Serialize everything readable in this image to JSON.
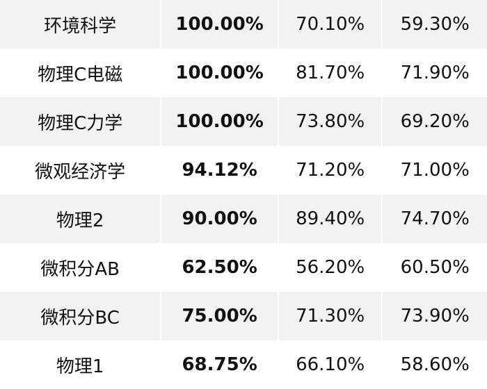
{
  "rows": [
    {
      "subject": "环境科学",
      "rate": "100.00%",
      "col3": "70.10%",
      "col4": "59.30%"
    },
    {
      "subject": "物理C电磁",
      "rate": "100.00%",
      "col3": "81.70%",
      "col4": "71.90%"
    },
    {
      "subject": "物理C力学",
      "rate": "100.00%",
      "col3": "73.80%",
      "col4": "69.20%"
    },
    {
      "subject": "微观经济学",
      "rate": "94.12%",
      "col3": "71.20%",
      "col4": "71.00%"
    },
    {
      "subject": "物理2",
      "rate": "90.00%",
      "col3": "89.40%",
      "col4": "74.70%"
    },
    {
      "subject": "微积分AB",
      "rate": "62.50%",
      "col3": "56.20%",
      "col4": "60.50%"
    },
    {
      "subject": "微积分BC",
      "rate": "75.00%",
      "col3": "71.30%",
      "col4": "73.90%"
    },
    {
      "subject": "物理1",
      "rate": "68.75%",
      "col3": "66.10%",
      "col4": "58.60%"
    }
  ],
  "colors": {
    "stripe": "#f2f2f2",
    "background": "#ffffff",
    "text": "#111111"
  }
}
